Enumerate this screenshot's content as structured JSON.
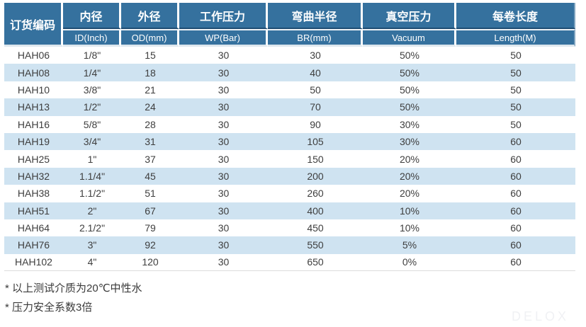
{
  "table": {
    "header": {
      "code_label": "订货编码",
      "groups": [
        {
          "cn": "内径",
          "en": "ID(Inch)"
        },
        {
          "cn": "外径",
          "en": "OD(mm)"
        },
        {
          "cn": "工作压力",
          "en": "WP(Bar)"
        },
        {
          "cn": "弯曲半径",
          "en": "BR(mm)"
        },
        {
          "cn": "真空压力",
          "en": "Vacuum"
        },
        {
          "cn": "每卷长度",
          "en": "Length(M)"
        }
      ]
    },
    "rows": [
      [
        "HAH06",
        "1/8\"",
        "15",
        "30",
        "30",
        "50%",
        "50"
      ],
      [
        "HAH08",
        "1/4\"",
        "18",
        "30",
        "40",
        "50%",
        "50"
      ],
      [
        "HAH10",
        "3/8\"",
        "21",
        "30",
        "50",
        "50%",
        "50"
      ],
      [
        "HAH13",
        "1/2\"",
        "24",
        "30",
        "70",
        "50%",
        "50"
      ],
      [
        "HAH16",
        "5/8\"",
        "28",
        "30",
        "90",
        "30%",
        "50"
      ],
      [
        "HAH19",
        "3/4\"",
        "31",
        "30",
        "105",
        "30%",
        "60"
      ],
      [
        "HAH25",
        "1\"",
        "37",
        "30",
        "150",
        "20%",
        "60"
      ],
      [
        "HAH32",
        "1.1/4\"",
        "45",
        "30",
        "200",
        "20%",
        "60"
      ],
      [
        "HAH38",
        "1.1/2\"",
        "51",
        "30",
        "260",
        "20%",
        "60"
      ],
      [
        "HAH51",
        "2\"",
        "67",
        "30",
        "400",
        "10%",
        "60"
      ],
      [
        "HAH64",
        "2.1/2\"",
        "79",
        "30",
        "450",
        "10%",
        "60"
      ],
      [
        "HAH76",
        "3\"",
        "92",
        "30",
        "550",
        "5%",
        "60"
      ],
      [
        "HAH102",
        "4\"",
        "120",
        "30",
        "650",
        "0%",
        "60"
      ]
    ]
  },
  "notes": [
    "* 以上测试介质为20℃中性水",
    "* 压力安全系数3倍"
  ],
  "watermark": "DELOX",
  "colors": {
    "header_bg": "#35719e",
    "header_text": "#ffffff",
    "stripe_row_bg": "#cfe3f1",
    "white_row_bg": "#ffffff",
    "divider_dark": "#1f4d73",
    "divider_light": "#eef3f7",
    "cell_text": "#3e3e3e",
    "note_text": "#3a3a3a",
    "watermark_text": "#f0f1f4"
  }
}
